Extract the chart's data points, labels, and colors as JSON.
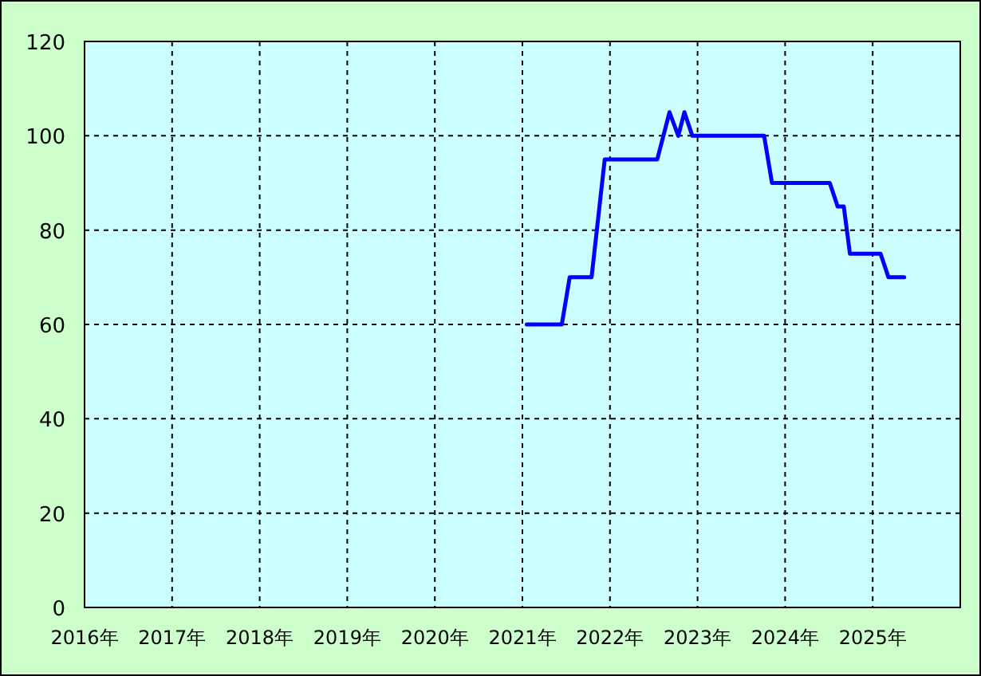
{
  "chart_data": {
    "type": "line",
    "x": [
      2021.05,
      2021.45,
      2021.54,
      2021.79,
      2021.94,
      2022.54,
      2022.68,
      2022.78,
      2022.85,
      2022.94,
      2023.76,
      2023.85,
      2024.51,
      2024.6,
      2024.67,
      2024.74,
      2025.09,
      2025.18,
      2025.36
    ],
    "series": [
      {
        "color": "#0000ff",
        "values": [
          60,
          60,
          70,
          70,
          95,
          95,
          105,
          100,
          105,
          100,
          100,
          90,
          90,
          85,
          85,
          75,
          75,
          70,
          70
        ]
      }
    ],
    "xlim": [
      2016,
      2026
    ],
    "ylim": [
      0,
      120
    ],
    "xticks": [
      {
        "value": 2016,
        "label": "2016年"
      },
      {
        "value": 2017,
        "label": "2017年"
      },
      {
        "value": 2018,
        "label": "2018年"
      },
      {
        "value": 2019,
        "label": "2019年"
      },
      {
        "value": 2020,
        "label": "2020年"
      },
      {
        "value": 2021,
        "label": "2021年"
      },
      {
        "value": 2022,
        "label": "2022年"
      },
      {
        "value": 2023,
        "label": "2023年"
      },
      {
        "value": 2024,
        "label": "2024年"
      },
      {
        "value": 2025,
        "label": "2025年"
      }
    ],
    "yticks": [
      0,
      20,
      40,
      60,
      80,
      100,
      120
    ],
    "grid": true,
    "marker": "none",
    "line_style": "solid"
  }
}
